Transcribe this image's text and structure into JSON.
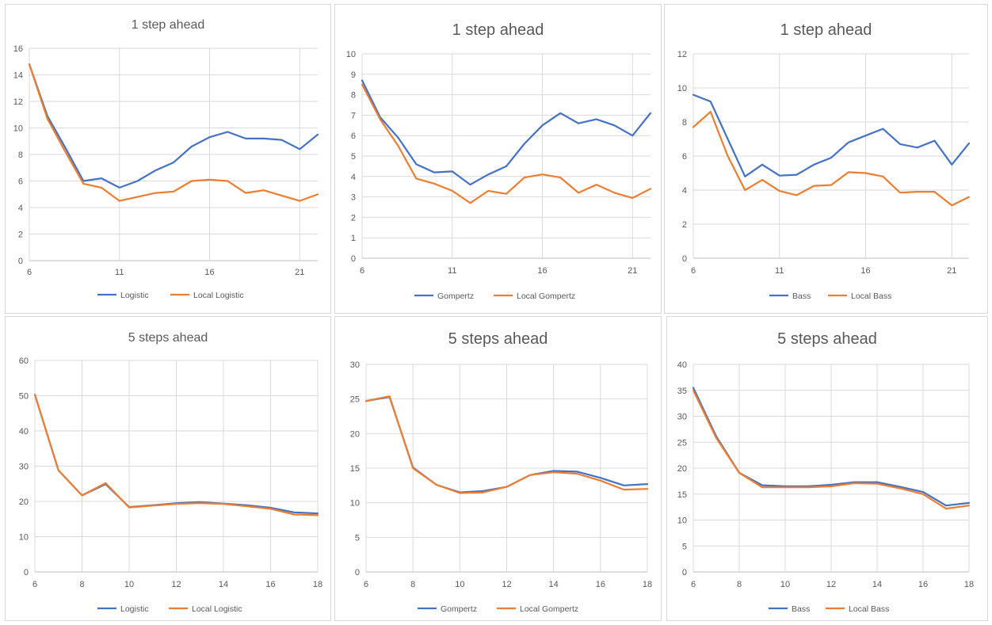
{
  "colors": {
    "primary": "#4472c4",
    "local": "#ed7d31"
  },
  "chart_data": [
    {
      "type": "line",
      "title": "1 step ahead",
      "x": [
        6,
        7,
        8,
        9,
        10,
        11,
        12,
        13,
        14,
        15,
        16,
        17,
        18,
        19,
        20,
        21,
        22
      ],
      "xticks": [
        6,
        11,
        16,
        21
      ],
      "xlim": [
        6,
        22
      ],
      "yticks": [
        0,
        2,
        4,
        6,
        8,
        10,
        12,
        14,
        16
      ],
      "ylim": [
        0,
        16
      ],
      "grid": true,
      "legend": "bottom",
      "series": [
        {
          "name": "Logistic",
          "values": [
            14.8,
            10.9,
            8.5,
            6.0,
            6.2,
            5.5,
            6.0,
            6.8,
            7.4,
            8.6,
            9.3,
            9.7,
            9.2,
            9.2,
            9.1,
            8.4,
            9.5
          ]
        },
        {
          "name": "Local Logistic",
          "values": [
            14.8,
            10.7,
            8.2,
            5.8,
            5.5,
            4.5,
            4.8,
            5.1,
            5.2,
            6.0,
            6.1,
            6.0,
            5.1,
            5.3,
            4.9,
            4.5,
            5.0
          ]
        }
      ]
    },
    {
      "type": "line",
      "title": "1 step ahead",
      "x": [
        6,
        7,
        8,
        9,
        10,
        11,
        12,
        13,
        14,
        15,
        16,
        17,
        18,
        19,
        20,
        21,
        22
      ],
      "xticks": [
        6,
        11,
        16,
        21
      ],
      "xlim": [
        6,
        22
      ],
      "yticks": [
        0,
        1,
        2,
        3,
        4,
        5,
        6,
        7,
        8,
        9,
        10
      ],
      "ylim": [
        0,
        10
      ],
      "grid": true,
      "legend": "bottom",
      "series": [
        {
          "name": "Gompertz",
          "values": [
            8.7,
            6.9,
            5.9,
            4.6,
            4.2,
            4.25,
            3.6,
            4.1,
            4.5,
            5.6,
            6.5,
            7.1,
            6.6,
            6.8,
            6.5,
            6.0,
            7.1
          ]
        },
        {
          "name": "Local Gompertz",
          "values": [
            8.5,
            6.8,
            5.5,
            3.9,
            3.65,
            3.3,
            2.7,
            3.3,
            3.15,
            3.95,
            4.1,
            3.95,
            3.2,
            3.6,
            3.2,
            2.95,
            3.4
          ]
        }
      ]
    },
    {
      "type": "line",
      "title": "1 step ahead",
      "x": [
        6,
        7,
        8,
        9,
        10,
        11,
        12,
        13,
        14,
        15,
        16,
        17,
        18,
        19,
        20,
        21,
        22
      ],
      "xticks": [
        6,
        11,
        16,
        21
      ],
      "xlim": [
        6,
        22
      ],
      "yticks": [
        0,
        2,
        4,
        6,
        8,
        10,
        12
      ],
      "ylim": [
        0,
        12
      ],
      "grid": true,
      "legend": "bottom",
      "series": [
        {
          "name": "Bass",
          "values": [
            9.6,
            9.2,
            7.0,
            4.8,
            5.5,
            4.85,
            4.9,
            5.5,
            5.9,
            6.8,
            7.2,
            7.6,
            6.7,
            6.5,
            6.9,
            5.5,
            6.75
          ]
        },
        {
          "name": "Local Bass",
          "values": [
            7.7,
            8.6,
            6.0,
            4.0,
            4.6,
            3.95,
            3.7,
            4.25,
            4.3,
            5.05,
            5.0,
            4.8,
            3.85,
            3.9,
            3.9,
            3.1,
            3.6
          ]
        }
      ]
    },
    {
      "type": "line",
      "title": "5 steps ahead",
      "x": [
        6,
        7,
        8,
        9,
        10,
        11,
        12,
        13,
        14,
        15,
        16,
        17,
        18
      ],
      "xticks": [
        6,
        8,
        10,
        12,
        14,
        16,
        18
      ],
      "xlim": [
        6,
        18
      ],
      "yticks": [
        0,
        10,
        20,
        30,
        40,
        50,
        60
      ],
      "ylim": [
        0,
        60
      ],
      "grid": true,
      "legend": "bottom",
      "series": [
        {
          "name": "Logistic",
          "values": [
            50.3,
            28.8,
            21.7,
            24.9,
            18.4,
            18.9,
            19.5,
            19.8,
            19.4,
            18.9,
            18.2,
            16.9,
            16.6
          ]
        },
        {
          "name": "Local Logistic",
          "values": [
            50.3,
            28.8,
            21.7,
            25.2,
            18.3,
            18.8,
            19.3,
            19.5,
            19.3,
            18.6,
            17.9,
            16.3,
            16.1
          ]
        }
      ]
    },
    {
      "type": "line",
      "title": "5 steps ahead",
      "x": [
        6,
        7,
        8,
        9,
        10,
        11,
        12,
        13,
        14,
        15,
        16,
        17,
        18
      ],
      "xticks": [
        6,
        8,
        10,
        12,
        14,
        16,
        18
      ],
      "xlim": [
        6,
        18
      ],
      "yticks": [
        0,
        5,
        10,
        15,
        20,
        25,
        30
      ],
      "ylim": [
        0,
        30
      ],
      "grid": true,
      "legend": "bottom",
      "series": [
        {
          "name": "Gompertz",
          "values": [
            24.7,
            25.3,
            15.1,
            12.6,
            11.5,
            11.7,
            12.3,
            14.0,
            14.6,
            14.5,
            13.6,
            12.5,
            12.7
          ]
        },
        {
          "name": "Local Gompertz",
          "values": [
            24.7,
            25.4,
            15.0,
            12.6,
            11.4,
            11.5,
            12.3,
            14.0,
            14.4,
            14.2,
            13.2,
            11.9,
            12.0
          ]
        }
      ]
    },
    {
      "type": "line",
      "title": "5 steps ahead",
      "x": [
        6,
        7,
        8,
        9,
        10,
        11,
        12,
        13,
        14,
        15,
        16,
        17,
        18
      ],
      "xticks": [
        6,
        8,
        10,
        12,
        14,
        16,
        18
      ],
      "xlim": [
        6,
        18
      ],
      "yticks": [
        0,
        5,
        10,
        15,
        20,
        25,
        30,
        35,
        40
      ],
      "ylim": [
        0,
        40
      ],
      "grid": true,
      "legend": "bottom",
      "series": [
        {
          "name": "Bass",
          "values": [
            35.5,
            26.1,
            19.1,
            16.7,
            16.5,
            16.5,
            16.8,
            17.3,
            17.3,
            16.4,
            15.4,
            12.8,
            13.3
          ]
        },
        {
          "name": "Local Bass",
          "values": [
            35.0,
            25.8,
            19.1,
            16.3,
            16.3,
            16.3,
            16.5,
            17.1,
            17.0,
            16.1,
            15.0,
            12.2,
            12.8
          ]
        }
      ]
    }
  ]
}
